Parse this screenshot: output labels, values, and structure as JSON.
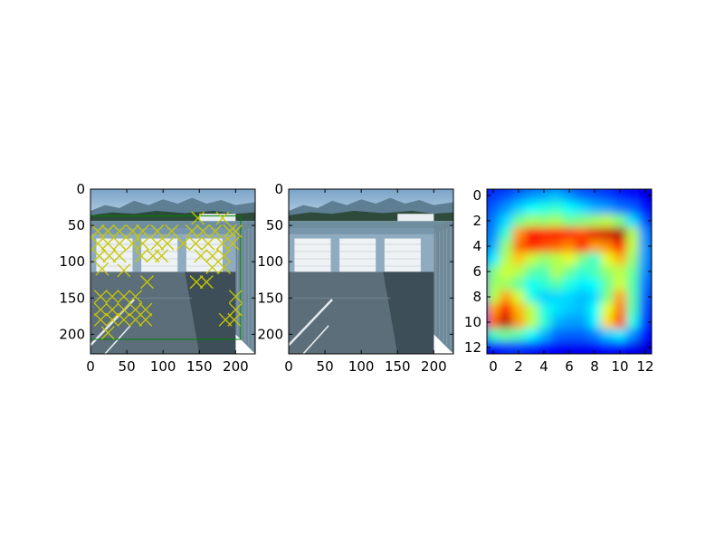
{
  "figure": {
    "background": "#ffffff"
  },
  "chart_data": [
    {
      "type": "image",
      "annotations": {
        "box_color": "#008000",
        "marker_color": "#c8c800",
        "marker_shape": "x",
        "box": {
          "x0": 0,
          "y0": 37,
          "x1": 207,
          "y1": 207
        },
        "markers": [
          [
            148,
            40
          ],
          [
            182,
            40
          ],
          [
            10,
            58
          ],
          [
            24,
            58
          ],
          [
            40,
            58
          ],
          [
            58,
            58
          ],
          [
            72,
            58
          ],
          [
            92,
            58
          ],
          [
            112,
            58
          ],
          [
            140,
            58
          ],
          [
            155,
            58
          ],
          [
            172,
            58
          ],
          [
            192,
            58
          ],
          [
            200,
            58
          ],
          [
            10,
            75
          ],
          [
            24,
            75
          ],
          [
            40,
            75
          ],
          [
            58,
            75
          ],
          [
            72,
            75
          ],
          [
            92,
            75
          ],
          [
            106,
            75
          ],
          [
            128,
            75
          ],
          [
            145,
            75
          ],
          [
            162,
            75
          ],
          [
            182,
            75
          ],
          [
            196,
            75
          ],
          [
            12,
            92
          ],
          [
            26,
            92
          ],
          [
            40,
            92
          ],
          [
            70,
            92
          ],
          [
            86,
            92
          ],
          [
            98,
            92
          ],
          [
            152,
            92
          ],
          [
            168,
            92
          ],
          [
            184,
            92
          ],
          [
            16,
            110
          ],
          [
            46,
            112
          ],
          [
            168,
            108
          ],
          [
            184,
            108
          ],
          [
            78,
            128
          ],
          [
            146,
            128
          ],
          [
            160,
            128
          ],
          [
            14,
            148
          ],
          [
            30,
            148
          ],
          [
            46,
            148
          ],
          [
            62,
            148
          ],
          [
            200,
            148
          ],
          [
            14,
            166
          ],
          [
            30,
            166
          ],
          [
            46,
            166
          ],
          [
            62,
            166
          ],
          [
            76,
            166
          ],
          [
            200,
            166
          ],
          [
            14,
            180
          ],
          [
            30,
            180
          ],
          [
            46,
            180
          ],
          [
            62,
            180
          ],
          [
            76,
            180
          ],
          [
            186,
            180
          ],
          [
            198,
            180
          ],
          [
            24,
            198
          ]
        ]
      },
      "xlim": [
        0,
        227
      ],
      "ylim": [
        227,
        0
      ],
      "xticks": [
        0,
        50,
        100,
        150,
        200
      ],
      "yticks": [
        0,
        50,
        100,
        150,
        200
      ],
      "xtick_labels": [
        "0",
        "50",
        "100",
        "150",
        "200"
      ],
      "ytick_labels": [
        "0",
        "50",
        "100",
        "150",
        "200"
      ]
    },
    {
      "type": "image",
      "xlim": [
        0,
        227
      ],
      "ylim": [
        227,
        0
      ],
      "xticks": [
        0,
        50,
        100,
        150,
        200
      ],
      "yticks": [
        0,
        50,
        100,
        150,
        200
      ],
      "xtick_labels": [
        "0",
        "50",
        "100",
        "150",
        "200"
      ],
      "ytick_labels": [
        "0",
        "50",
        "100",
        "150",
        "200"
      ]
    },
    {
      "type": "heatmap",
      "colormap": "jet",
      "vmin": 0,
      "vmax": 1,
      "rows": 13,
      "cols": 13,
      "values": [
        [
          0.18,
          0.2,
          0.24,
          0.27,
          0.29,
          0.31,
          0.27,
          0.23,
          0.21,
          0.19,
          0.16,
          0.14,
          0.1
        ],
        [
          0.22,
          0.27,
          0.33,
          0.38,
          0.4,
          0.42,
          0.38,
          0.34,
          0.3,
          0.28,
          0.24,
          0.22,
          0.14
        ],
        [
          0.25,
          0.34,
          0.48,
          0.53,
          0.52,
          0.54,
          0.48,
          0.5,
          0.53,
          0.56,
          0.5,
          0.34,
          0.2
        ],
        [
          0.27,
          0.43,
          0.73,
          0.88,
          0.85,
          0.86,
          0.84,
          0.8,
          0.9,
          0.92,
          0.96,
          0.55,
          0.26
        ],
        [
          0.3,
          0.52,
          0.77,
          0.84,
          0.8,
          0.78,
          0.74,
          0.86,
          0.72,
          0.74,
          0.86,
          0.56,
          0.27
        ],
        [
          0.36,
          0.55,
          0.68,
          0.57,
          0.52,
          0.55,
          0.6,
          0.5,
          0.42,
          0.6,
          0.7,
          0.52,
          0.27
        ],
        [
          0.5,
          0.58,
          0.55,
          0.47,
          0.45,
          0.55,
          0.48,
          0.42,
          0.45,
          0.52,
          0.56,
          0.48,
          0.26
        ],
        [
          0.53,
          0.53,
          0.47,
          0.38,
          0.42,
          0.46,
          0.4,
          0.36,
          0.38,
          0.48,
          0.58,
          0.46,
          0.24
        ],
        [
          0.55,
          0.72,
          0.58,
          0.4,
          0.33,
          0.34,
          0.34,
          0.31,
          0.34,
          0.5,
          0.72,
          0.46,
          0.22
        ],
        [
          0.72,
          0.88,
          0.7,
          0.56,
          0.4,
          0.35,
          0.32,
          0.31,
          0.38,
          0.6,
          0.76,
          0.45,
          0.2
        ],
        [
          0.78,
          0.94,
          0.72,
          0.56,
          0.42,
          0.3,
          0.28,
          0.28,
          0.36,
          0.66,
          0.8,
          0.4,
          0.18
        ],
        [
          0.44,
          0.48,
          0.45,
          0.38,
          0.3,
          0.23,
          0.22,
          0.22,
          0.25,
          0.32,
          0.36,
          0.26,
          0.14
        ],
        [
          0.14,
          0.17,
          0.18,
          0.16,
          0.14,
          0.12,
          0.11,
          0.11,
          0.12,
          0.14,
          0.14,
          0.11,
          0.08
        ]
      ],
      "xlim": [
        -0.5,
        12.5
      ],
      "ylim": [
        12.5,
        -0.5
      ],
      "xticks": [
        0,
        2,
        4,
        6,
        8,
        10,
        12
      ],
      "yticks": [
        0,
        2,
        4,
        6,
        8,
        10,
        12
      ],
      "xtick_labels": [
        "0",
        "2",
        "4",
        "6",
        "8",
        "10",
        "12"
      ],
      "ytick_labels": [
        "0",
        "2",
        "4",
        "6",
        "8",
        "10",
        "12"
      ]
    }
  ]
}
